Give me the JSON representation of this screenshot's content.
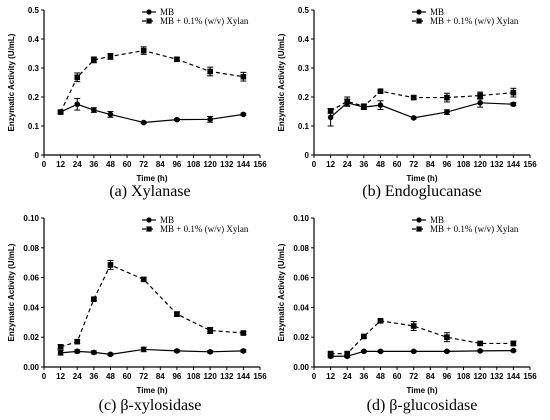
{
  "chart_data": [
    {
      "type": "line",
      "caption": "(a) Xylanase",
      "xlabel": "Time (h)",
      "ylabel": "Enzymatic Activity (U/mL)",
      "x_ticks": [
        0,
        12,
        24,
        36,
        48,
        60,
        72,
        84,
        96,
        108,
        120,
        132,
        144,
        156
      ],
      "y_ticks": [
        "0",
        "0.1",
        "0.2",
        "0.3",
        "0.4",
        "0.5"
      ],
      "xlim": [
        0,
        156
      ],
      "ylim": [
        0,
        0.5
      ],
      "legend_position": "top-right",
      "x": [
        12,
        24,
        36,
        48,
        72,
        96,
        120,
        144
      ],
      "series": [
        {
          "name": "MB",
          "marker": "circle",
          "style": "solid",
          "values": [
            0.148,
            0.175,
            0.155,
            0.14,
            0.112,
            0.122,
            0.123,
            0.14
          ],
          "errors": [
            0.004,
            0.02,
            0.008,
            0.01,
            0.003,
            0.003,
            0.01,
            0.004
          ]
        },
        {
          "name": "MB + 0.1% (w/v) Xylan",
          "marker": "square",
          "style": "dashed",
          "values": [
            0.148,
            0.268,
            0.328,
            0.34,
            0.36,
            0.33,
            0.288,
            0.27
          ],
          "errors": [
            0.004,
            0.015,
            0.01,
            0.01,
            0.013,
            0.005,
            0.015,
            0.015
          ]
        }
      ]
    },
    {
      "type": "line",
      "caption": "(b) Endoglucanase",
      "xlabel": "Time (h)",
      "ylabel": "Enzymatic Activity (U/mL)",
      "x_ticks": [
        0,
        12,
        24,
        36,
        48,
        60,
        72,
        84,
        96,
        108,
        120,
        132,
        144,
        156
      ],
      "y_ticks": [
        "0",
        "0.1",
        "0.2",
        "0.3",
        "0.4",
        "0.5"
      ],
      "xlim": [
        0,
        156
      ],
      "ylim": [
        0,
        0.5
      ],
      "legend_position": "top-right",
      "x": [
        12,
        24,
        36,
        48,
        72,
        96,
        120,
        144
      ],
      "series": [
        {
          "name": "MB",
          "marker": "circle",
          "style": "solid",
          "values": [
            0.13,
            0.18,
            0.165,
            0.172,
            0.128,
            0.148,
            0.18,
            0.175
          ],
          "errors": [
            0.03,
            0.012,
            0.008,
            0.015,
            0.003,
            0.008,
            0.015,
            0.005
          ]
        },
        {
          "name": "MB + 0.1% (w/v) Xylan",
          "marker": "square",
          "style": "dashed",
          "values": [
            0.152,
            0.185,
            0.168,
            0.22,
            0.198,
            0.198,
            0.205,
            0.215
          ],
          "errors": [
            0.008,
            0.015,
            0.008,
            0.005,
            0.005,
            0.015,
            0.012,
            0.015
          ]
        }
      ]
    },
    {
      "type": "line",
      "caption": "(c) β-xylosidase",
      "xlabel": "Time (h)",
      "ylabel": "Enzymatic Activity (U/mL)",
      "x_ticks": [
        0,
        12,
        24,
        36,
        48,
        60,
        72,
        84,
        96,
        108,
        120,
        132,
        144,
        156
      ],
      "y_ticks": [
        "0.00",
        "0.02",
        "0.04",
        "0.06",
        "0.08",
        "0.10"
      ],
      "xlim": [
        0,
        156
      ],
      "ylim": [
        0,
        0.1
      ],
      "legend_position": "top-right",
      "x": [
        12,
        24,
        36,
        48,
        72,
        96,
        120,
        144
      ],
      "series": [
        {
          "name": "MB",
          "marker": "circle",
          "style": "solid",
          "values": [
            0.0095,
            0.0105,
            0.0098,
            0.0085,
            0.0118,
            0.0108,
            0.0102,
            0.0108
          ],
          "errors": [
            0.0015,
            0.001,
            0.001,
            0.0008,
            0.0015,
            0.0008,
            0.0008,
            0.0008
          ]
        },
        {
          "name": "MB + 0.1% (w/v) Xylan",
          "marker": "square",
          "style": "dashed",
          "values": [
            0.0135,
            0.017,
            0.0455,
            0.0685,
            0.0588,
            0.0355,
            0.0245,
            0.0228
          ],
          "errors": [
            0.0015,
            0.001,
            0.001,
            0.003,
            0.001,
            0.0015,
            0.002,
            0.001
          ]
        }
      ]
    },
    {
      "type": "line",
      "caption": "(d) β-glucosidase",
      "xlabel": "Time (h)",
      "ylabel": "Enzymatic Activity (U/mL)",
      "x_ticks": [
        0,
        12,
        24,
        36,
        48,
        60,
        72,
        84,
        96,
        108,
        120,
        132,
        144,
        156
      ],
      "y_ticks": [
        "0.00",
        "0.02",
        "0.04",
        "0.06",
        "0.08",
        "0.10"
      ],
      "xlim": [
        0,
        156
      ],
      "ylim": [
        0,
        0.1
      ],
      "legend_position": "top-right",
      "x": [
        12,
        24,
        36,
        48,
        72,
        96,
        120,
        144
      ],
      "series": [
        {
          "name": "MB",
          "marker": "circle",
          "style": "solid",
          "values": [
            0.0072,
            0.0072,
            0.0105,
            0.0105,
            0.0105,
            0.0105,
            0.0108,
            0.011
          ],
          "errors": [
            0.001,
            0.0008,
            0.0005,
            0.0005,
            0.0005,
            0.0005,
            0.0005,
            0.0005
          ]
        },
        {
          "name": "MB + 0.1% (w/v) Xylan",
          "marker": "square",
          "style": "dashed",
          "values": [
            0.009,
            0.009,
            0.0205,
            0.031,
            0.0275,
            0.02,
            0.0158,
            0.0158
          ],
          "errors": [
            0.001,
            0.001,
            0.001,
            0.001,
            0.003,
            0.003,
            0.001,
            0.0015
          ]
        }
      ]
    }
  ]
}
